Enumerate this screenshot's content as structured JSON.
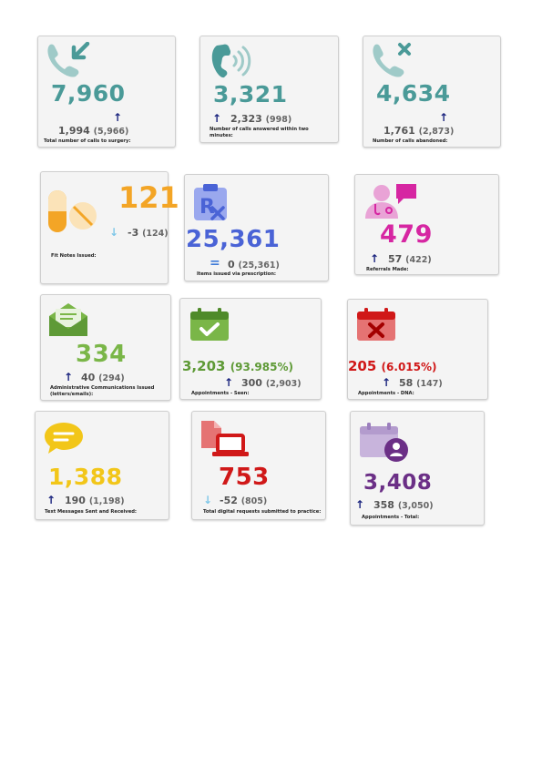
{
  "colors": {
    "teal": "#4a9a98",
    "teal_light": "#9fcac8",
    "orange": "#f3a526",
    "blue": "#4a63d6",
    "magenta": "#d626a2",
    "green": "#7ab648",
    "red": "#d01818",
    "yellow": "#f2c619",
    "purple": "#6b2f86",
    "arrow_up": "#1a237e",
    "arrow_down": "#7fc7e8"
  },
  "cards": {
    "calls_to_surgery": {
      "icon": "incoming-call-icon",
      "value": "7,960",
      "change": "1,994",
      "previous": "(5,966)",
      "trend": "↑",
      "label": "Total number of calls to surgery:"
    },
    "calls_answered": {
      "icon": "phone-ringing-icon",
      "value": "3,321",
      "change": "2,323",
      "previous": "(998)",
      "trend": "↑",
      "label": "Number of calls answered within two minutes:"
    },
    "calls_abandoned": {
      "icon": "missed-call-icon",
      "value": "4,634",
      "change": "1,761",
      "previous": "(2,873)",
      "trend": "↑",
      "label": "Number of calls abandoned:"
    },
    "fit_notes": {
      "icon": "pills-icon",
      "value": "121",
      "change": "-3",
      "previous": "(124)",
      "trend": "↓",
      "label": "Fit Notes Issued:"
    },
    "prescriptions": {
      "icon": "prescription-icon",
      "value": "25,361",
      "change": "0",
      "previous": "(25,361)",
      "trend": "=",
      "label": "Items issued via prescription:"
    },
    "referrals": {
      "icon": "doctor-chat-icon",
      "value": "479",
      "change": "57",
      "previous": "(422)",
      "trend": "↑",
      "label": "Referrals Made:"
    },
    "admin_comms": {
      "icon": "envelope-icon",
      "value": "334",
      "change": "40",
      "previous": "(294)",
      "trend": "↑",
      "label": "Administrative Communications Issued (letters/emails):"
    },
    "appointments_seen": {
      "icon": "calendar-check-icon",
      "value": "3,203",
      "value_pct": "(93.985%)",
      "change": "300",
      "previous": "(2,903)",
      "trend": "↑",
      "label": "Appointments - Seen:"
    },
    "appointments_dna": {
      "icon": "calendar-cross-icon",
      "value": "205",
      "value_pct": "(6.015%)",
      "change": "58",
      "previous": "(147)",
      "trend": "↑",
      "label": "Appointments - DNA:"
    },
    "text_messages": {
      "icon": "speech-bubble-icon",
      "value": "1,388",
      "change": "190",
      "previous": "(1,198)",
      "trend": "↑",
      "label": "Text Messages Sent and Received:"
    },
    "digital_requests": {
      "icon": "laptop-document-icon",
      "value": "753",
      "change": "-52",
      "previous": "(805)",
      "trend": "↓",
      "label": "Total digital requests submitted to practice:"
    },
    "appointments_total": {
      "icon": "calendar-user-icon",
      "value": "3,408",
      "change": "358",
      "previous": "(3,050)",
      "trend": "↑",
      "label": "Appointments - Total:"
    }
  }
}
